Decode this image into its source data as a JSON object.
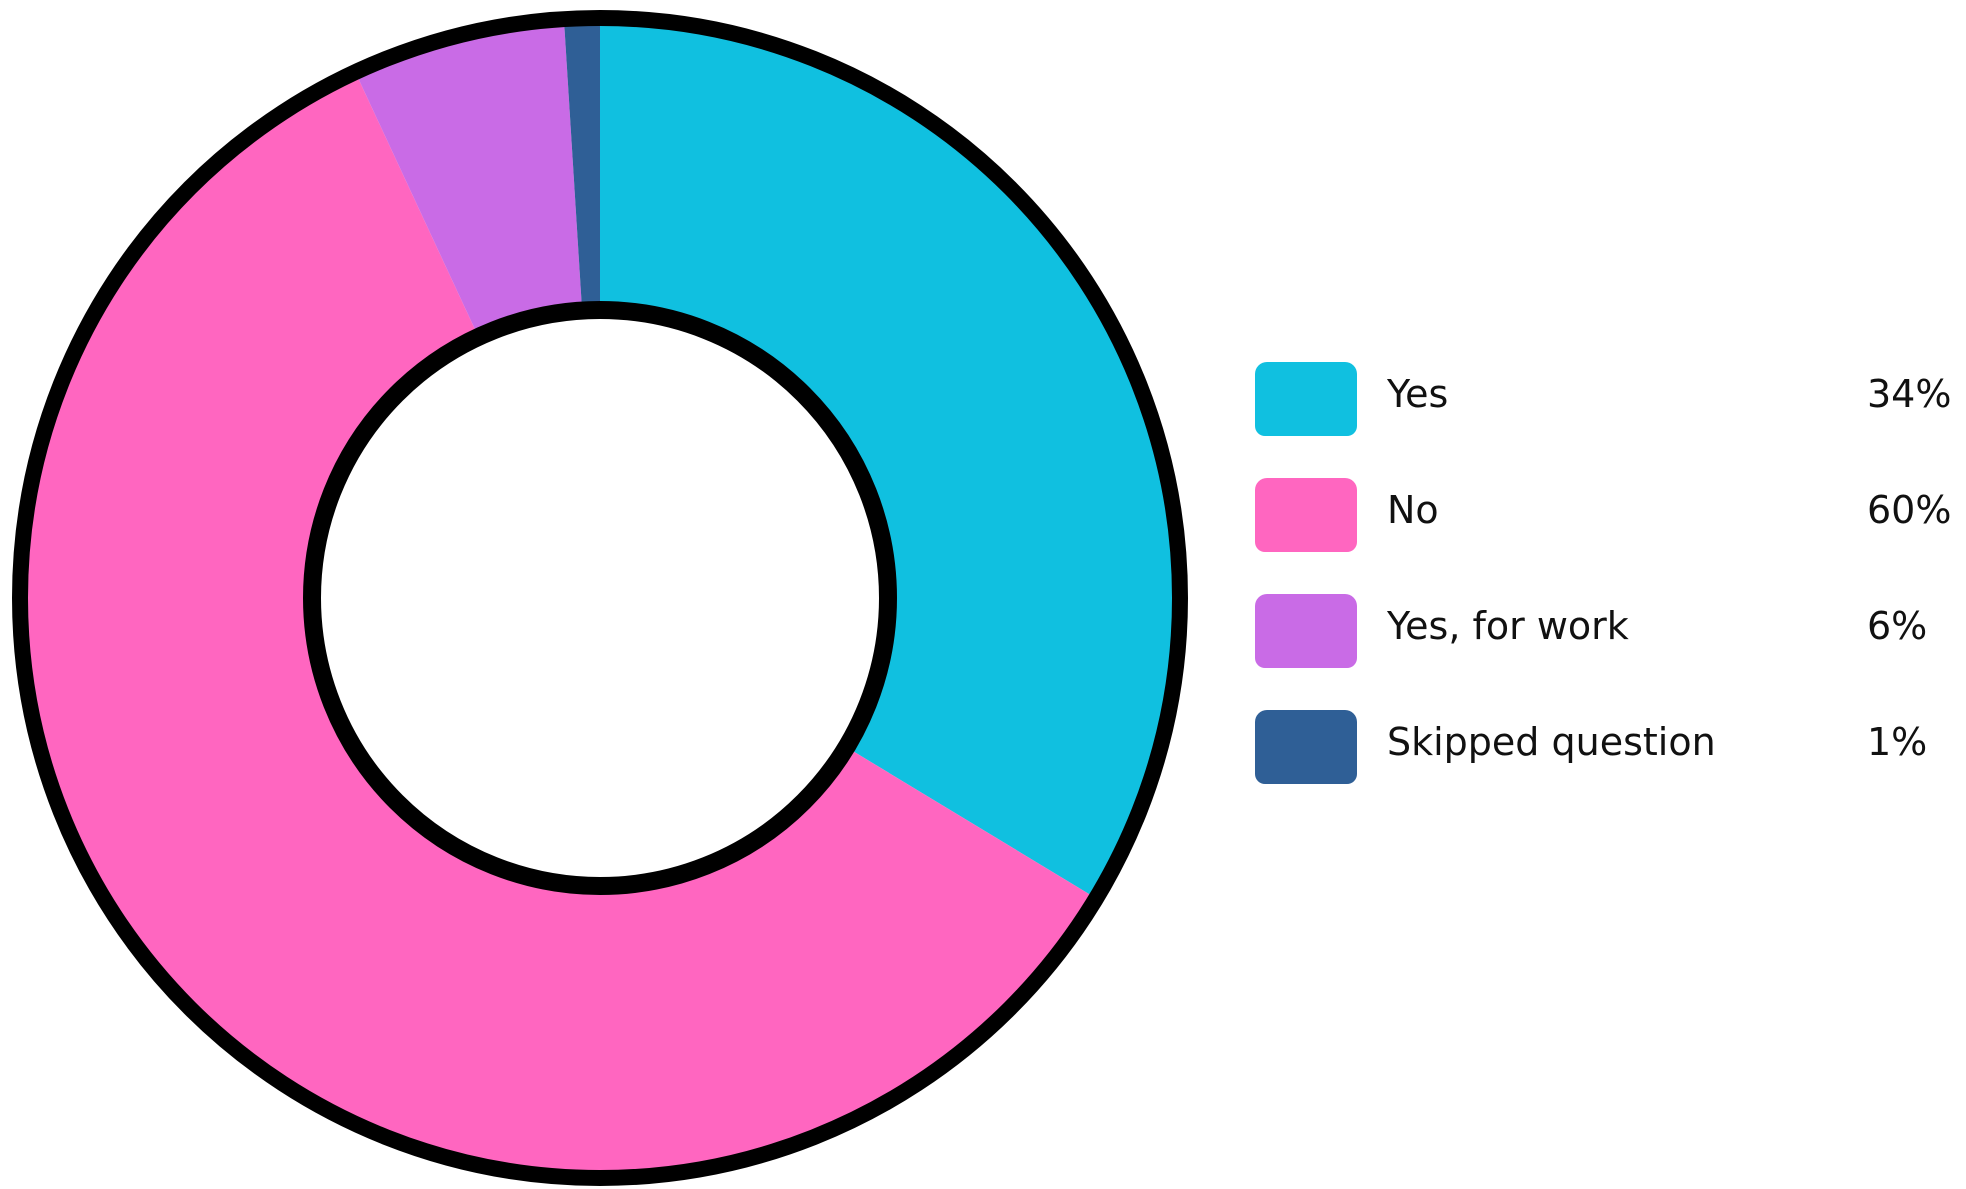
{
  "chart_data": {
    "type": "pie",
    "variant": "donut",
    "categories": [
      "Yes",
      "No",
      "Yes, for work",
      "Skipped question"
    ],
    "values": [
      34,
      60,
      6,
      1
    ],
    "value_labels": [
      "34%",
      "60%",
      "6%",
      "1%"
    ],
    "colors": [
      "#10C0E0",
      "#FF66C0",
      "#C96BE6",
      "#2F5F96"
    ],
    "legend_position": "right",
    "start_angle": "12 o'clock, clockwise"
  }
}
